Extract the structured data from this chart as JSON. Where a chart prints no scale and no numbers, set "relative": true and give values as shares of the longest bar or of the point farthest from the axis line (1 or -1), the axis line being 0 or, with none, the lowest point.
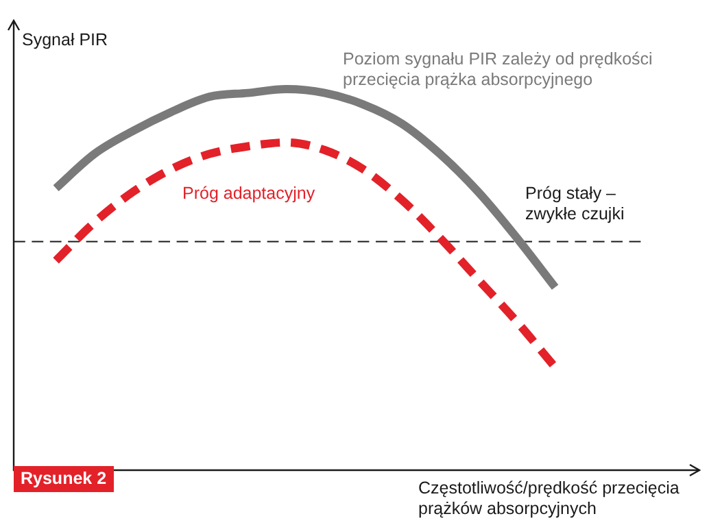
{
  "chart_data": {
    "type": "line",
    "relative": true,
    "xlabel": "Częstotliwość/prędkość przecięcia prążków absorpcyjnych",
    "ylabel": "Sygnał PIR",
    "categories": [
      null,
      null,
      null,
      null,
      null,
      null,
      null,
      null,
      null,
      null,
      null,
      null,
      null,
      null
    ],
    "series": [
      {
        "name": "Poziom sygnału PIR zależy od prędkości przecięcia prążka absorpcyjnego",
        "color": "#7a7a7a",
        "line_style": "solid",
        "values": [
          0.74,
          0.83,
          0.89,
          0.94,
          0.98,
          0.99,
          1.0,
          0.99,
          0.96,
          0.91,
          0.83,
          0.73,
          0.61,
          0.48
        ]
      },
      {
        "name": "Próg adaptacyjny",
        "color": "#e32129",
        "line_style": "dashed",
        "values": [
          0.55,
          0.65,
          0.73,
          0.79,
          0.83,
          0.85,
          0.86,
          0.84,
          0.79,
          0.71,
          0.61,
          0.5,
          0.39,
          0.27
        ]
      }
    ],
    "ref_lines": [
      {
        "axis": "y",
        "value": 0.6,
        "label": "Próg stały – zwykłe czujki",
        "color": "#1a1a1a",
        "line_style": "dashed"
      }
    ],
    "annotations": [
      "Rysunek 2"
    ],
    "legend": false,
    "grid": false,
    "marker": "none"
  }
}
